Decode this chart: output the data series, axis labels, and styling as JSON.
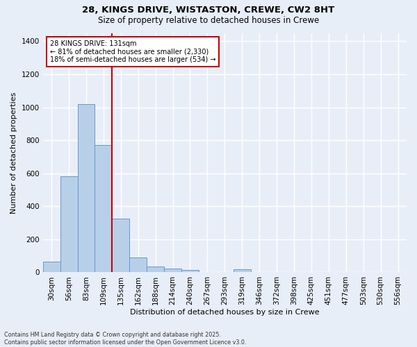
{
  "title1": "28, KINGS DRIVE, WISTASTON, CREWE, CW2 8HT",
  "title2": "Size of property relative to detached houses in Crewe",
  "xlabel": "Distribution of detached houses by size in Crewe",
  "ylabel": "Number of detached properties",
  "categories": [
    "30sqm",
    "56sqm",
    "83sqm",
    "109sqm",
    "135sqm",
    "162sqm",
    "188sqm",
    "214sqm",
    "240sqm",
    "267sqm",
    "293sqm",
    "319sqm",
    "346sqm",
    "372sqm",
    "398sqm",
    "425sqm",
    "451sqm",
    "477sqm",
    "503sqm",
    "530sqm",
    "556sqm"
  ],
  "values": [
    65,
    580,
    1020,
    770,
    325,
    90,
    35,
    25,
    15,
    0,
    0,
    20,
    0,
    0,
    0,
    0,
    0,
    0,
    0,
    0,
    0
  ],
  "bar_color": "#b8cfe8",
  "bar_edge_color": "#6699cc",
  "vline_color": "#cc0000",
  "annotation_line1": "28 KINGS DRIVE: 131sqm",
  "annotation_line2": "← 81% of detached houses are smaller (2,330)",
  "annotation_line3": "18% of semi-detached houses are larger (534) →",
  "annotation_box_color": "white",
  "annotation_box_edge": "#cc0000",
  "ylim": [
    0,
    1450
  ],
  "yticks": [
    0,
    200,
    400,
    600,
    800,
    1000,
    1200,
    1400
  ],
  "bg_color": "#e8eef8",
  "grid_color": "white",
  "footer1": "Contains HM Land Registry data © Crown copyright and database right 2025.",
  "footer2": "Contains public sector information licensed under the Open Government Licence v3.0."
}
